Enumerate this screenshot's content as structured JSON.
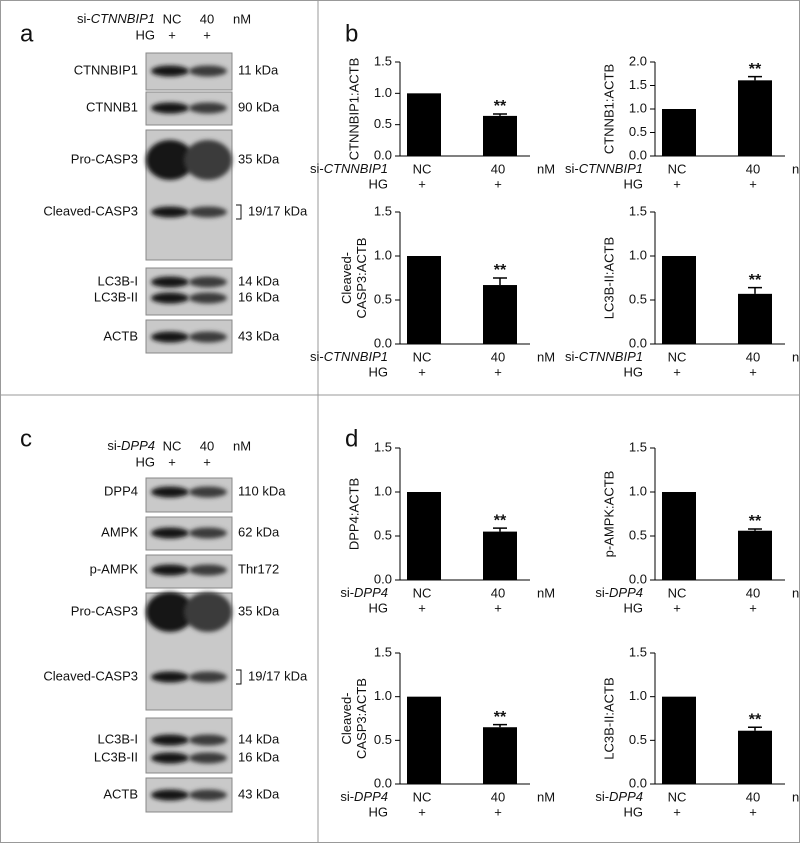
{
  "panel_labels": [
    "a",
    "b",
    "c",
    "d"
  ],
  "blots": [
    {
      "prefix": "si-",
      "gene": "CTNNBIP1",
      "conditions": [
        "NC",
        "40"
      ],
      "unit": "nM",
      "treatment": "HG",
      "treatment_marks": [
        "+",
        "+"
      ],
      "bands": [
        {
          "label": "CTNNBIP1",
          "size": "11 kDa"
        },
        {
          "label": "CTNNB1",
          "size": "90 kDa"
        },
        {
          "label": "Pro-CASP3",
          "size": "35 kDa"
        },
        {
          "label": "Cleaved-CASP3",
          "size": "19/17 kDa"
        },
        {
          "label": "LC3B-I",
          "size": "14 kDa"
        },
        {
          "label": "LC3B-II",
          "size": "16 kDa"
        },
        {
          "label": "ACTB",
          "size": "43 kDa"
        }
      ]
    },
    {
      "prefix": "si-",
      "gene": "DPP4",
      "conditions": [
        "NC",
        "40"
      ],
      "unit": "nM",
      "treatment": "HG",
      "treatment_marks": [
        "+",
        "+"
      ],
      "bands": [
        {
          "label": "DPP4",
          "size": "110 kDa"
        },
        {
          "label": "AMPK",
          "size": "62 kDa"
        },
        {
          "label": "p-AMPK",
          "size": "Thr172"
        },
        {
          "label": "Pro-CASP3",
          "size": "35 kDa"
        },
        {
          "label": "Cleaved-CASP3",
          "size": "19/17 kDa"
        },
        {
          "label": "LC3B-I",
          "size": "14 kDa"
        },
        {
          "label": "LC3B-II",
          "size": "16 kDa"
        },
        {
          "label": "ACTB",
          "size": "43 kDa"
        }
      ]
    }
  ],
  "chart_data": [
    {
      "type": "bar",
      "ylabel": [
        "CTNNBIP1:ACTB"
      ],
      "categories": [
        "NC",
        "40"
      ],
      "values": [
        1.0,
        0.64
      ],
      "errors": [
        null,
        0.03
      ],
      "significance": [
        null,
        "**"
      ],
      "color": "#000000",
      "ylim": [
        0,
        1.5
      ],
      "yticks": [
        {
          "value": 0,
          "label": "0.0"
        },
        {
          "value": 0.5,
          "label": "0.5"
        },
        {
          "value": 1,
          "label": "1.0"
        },
        {
          "value": 1.5,
          "label": "1.5"
        }
      ],
      "x_prefix": "si-",
      "x_gene": "CTNNBIP1",
      "x_unit": "nM",
      "row2_label": "HG",
      "row2": [
        "+",
        "+"
      ]
    },
    {
      "type": "bar",
      "ylabel": [
        "CTNNB1:ACTB"
      ],
      "categories": [
        "NC",
        "40"
      ],
      "values": [
        1.0,
        1.61
      ],
      "errors": [
        null,
        0.08
      ],
      "significance": [
        null,
        "**"
      ],
      "color": "#000000",
      "ylim": [
        0,
        2.0
      ],
      "yticks": [
        {
          "value": 0,
          "label": "0.0"
        },
        {
          "value": 0.5,
          "label": "0.5"
        },
        {
          "value": 1,
          "label": "1.0"
        },
        {
          "value": 1.5,
          "label": "1.5"
        },
        {
          "value": 2,
          "label": "2.0"
        }
      ],
      "x_prefix": "si-",
      "x_gene": "CTNNBIP1",
      "x_unit": "nM",
      "row2_label": "HG",
      "row2": [
        "+",
        "+"
      ]
    },
    {
      "type": "bar",
      "ylabel": [
        "Cleaved-",
        "CASP3:ACTB"
      ],
      "categories": [
        "NC",
        "40"
      ],
      "values": [
        1.0,
        0.67
      ],
      "errors": [
        null,
        0.08
      ],
      "significance": [
        null,
        "**"
      ],
      "color": "#000000",
      "ylim": [
        0,
        1.5
      ],
      "yticks": [
        {
          "value": 0,
          "label": "0.0"
        },
        {
          "value": 0.5,
          "label": "0.5"
        },
        {
          "value": 1,
          "label": "1.0"
        },
        {
          "value": 1.5,
          "label": "1.5"
        }
      ],
      "x_prefix": "si-",
      "x_gene": "CTNNBIP1",
      "x_unit": "nM",
      "row2_label": "HG",
      "row2": [
        "+",
        "+"
      ]
    },
    {
      "type": "bar",
      "ylabel": [
        "LC3B-II:ACTB"
      ],
      "categories": [
        "NC",
        "40"
      ],
      "values": [
        1.0,
        0.57
      ],
      "errors": [
        null,
        0.07
      ],
      "significance": [
        null,
        "**"
      ],
      "color": "#000000",
      "ylim": [
        0,
        1.5
      ],
      "yticks": [
        {
          "value": 0,
          "label": "0.0"
        },
        {
          "value": 0.5,
          "label": "0.5"
        },
        {
          "value": 1,
          "label": "1.0"
        },
        {
          "value": 1.5,
          "label": "1.5"
        }
      ],
      "x_prefix": "si-",
      "x_gene": "CTNNBIP1",
      "x_unit": "nM",
      "row2_label": "HG",
      "row2": [
        "+",
        "+"
      ]
    },
    {
      "type": "bar",
      "ylabel": [
        "DPP4:ACTB"
      ],
      "categories": [
        "NC",
        "40"
      ],
      "values": [
        1.0,
        0.55
      ],
      "errors": [
        null,
        0.04
      ],
      "significance": [
        null,
        "**"
      ],
      "color": "#000000",
      "ylim": [
        0,
        1.5
      ],
      "yticks": [
        {
          "value": 0,
          "label": "0.0"
        },
        {
          "value": 0.5,
          "label": "0.5"
        },
        {
          "value": 1,
          "label": "1.0"
        },
        {
          "value": 1.5,
          "label": "1.5"
        }
      ],
      "x_prefix": "si-",
      "x_gene": "DPP4",
      "x_unit": "nM",
      "row2_label": "HG",
      "row2": [
        "+",
        "+"
      ]
    },
    {
      "type": "bar",
      "ylabel": [
        "p-AMPK:ACTB"
      ],
      "categories": [
        "NC",
        "40"
      ],
      "values": [
        1.0,
        0.56
      ],
      "errors": [
        null,
        0.02
      ],
      "significance": [
        null,
        "**"
      ],
      "color": "#000000",
      "ylim": [
        0,
        1.5
      ],
      "yticks": [
        {
          "value": 0,
          "label": "0.0"
        },
        {
          "value": 0.5,
          "label": "0.5"
        },
        {
          "value": 1,
          "label": "1.0"
        },
        {
          "value": 1.5,
          "label": "1.5"
        }
      ],
      "x_prefix": "si-",
      "x_gene": "DPP4",
      "x_unit": "nM",
      "row2_label": "HG",
      "row2": [
        "+",
        "+"
      ]
    },
    {
      "type": "bar",
      "ylabel": [
        "Cleaved-",
        "CASP3:ACTB"
      ],
      "categories": [
        "NC",
        "40"
      ],
      "values": [
        1.0,
        0.65
      ],
      "errors": [
        null,
        0.03
      ],
      "significance": [
        null,
        "**"
      ],
      "color": "#000000",
      "ylim": [
        0,
        1.5
      ],
      "yticks": [
        {
          "value": 0,
          "label": "0.0"
        },
        {
          "value": 0.5,
          "label": "0.5"
        },
        {
          "value": 1,
          "label": "1.0"
        },
        {
          "value": 1.5,
          "label": "1.5"
        }
      ],
      "x_prefix": "si-",
      "x_gene": "DPP4",
      "x_unit": "nM",
      "row2_label": "HG",
      "row2": [
        "+",
        "+"
      ]
    },
    {
      "type": "bar",
      "ylabel": [
        "LC3B-II:ACTB"
      ],
      "categories": [
        "NC",
        "40"
      ],
      "values": [
        1.0,
        0.61
      ],
      "errors": [
        null,
        0.04
      ],
      "significance": [
        null,
        "**"
      ],
      "color": "#000000",
      "ylim": [
        0,
        1.5
      ],
      "yticks": [
        {
          "value": 0,
          "label": "0.0"
        },
        {
          "value": 0.5,
          "label": "0.5"
        },
        {
          "value": 1,
          "label": "1.0"
        },
        {
          "value": 1.5,
          "label": "1.5"
        }
      ],
      "x_prefix": "si-",
      "x_gene": "DPP4",
      "x_unit": "nM",
      "row2_label": "HG",
      "row2": [
        "+",
        "+"
      ]
    }
  ]
}
